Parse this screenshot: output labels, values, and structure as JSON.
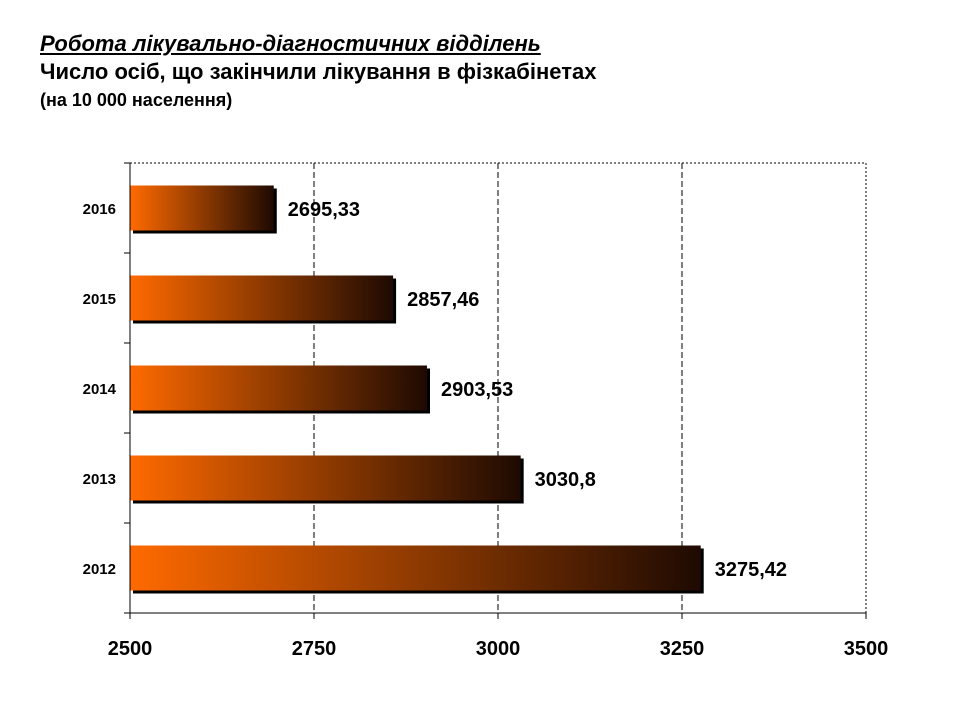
{
  "title": "Робота лікувально-діагностичних відділень",
  "subtitle": "Число осіб, що закінчили  лікування в фізкабінетах",
  "note": "(на 10 000 населення)",
  "colors": {
    "bar_start": "#ff6a00",
    "bar_end": "#1e0a02",
    "axis": "#000000",
    "grid": "#000000"
  },
  "chart_data": {
    "type": "bar",
    "orientation": "horizontal",
    "categories": [
      "2016",
      "2015",
      "2014",
      "2013",
      "2012"
    ],
    "values": [
      2695.33,
      2857.46,
      2903.53,
      3030.8,
      3275.42
    ],
    "value_labels": [
      "2695,33",
      "2857,46",
      "2903,53",
      "3030,8",
      "3275,42"
    ],
    "xlim": [
      2500,
      3500
    ],
    "xticks": [
      "2500",
      "2750",
      "3000",
      "3250",
      "3500"
    ],
    "xtick_values": [
      2500,
      2750,
      3000,
      3250,
      3500
    ],
    "grid": "vertical dashed",
    "legend": "none"
  }
}
